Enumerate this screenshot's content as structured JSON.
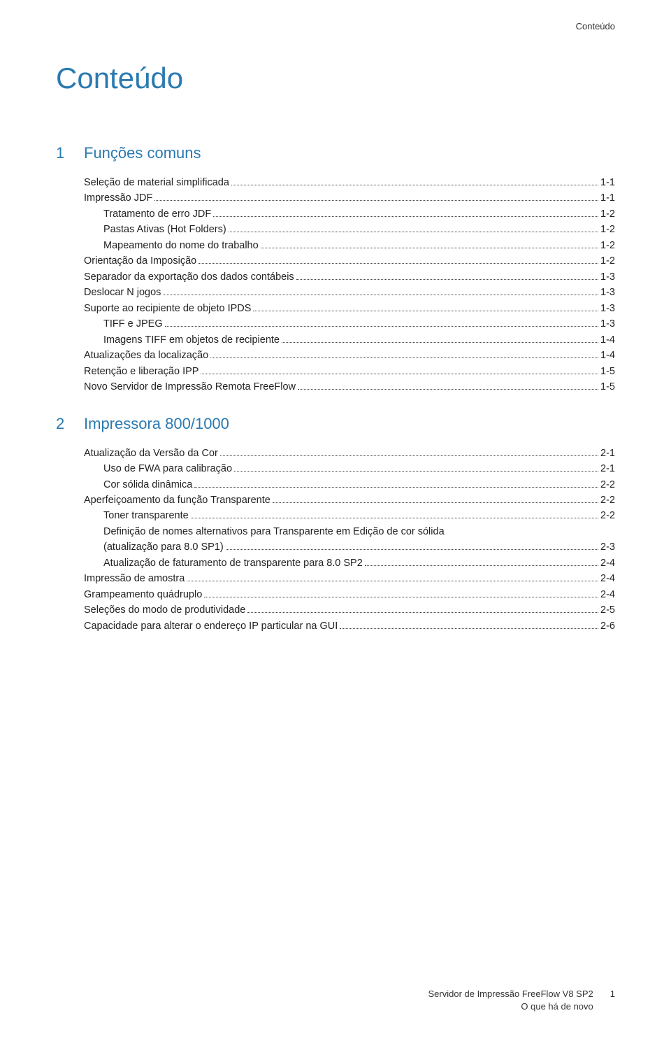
{
  "header_label": "Conteúdo",
  "main_title": "Conteúdo",
  "chapters": [
    {
      "num": "1",
      "title": "Funções comuns",
      "entries": [
        {
          "label": "Seleção de material simplificada",
          "page": "1-1",
          "indent": 0
        },
        {
          "label": "Impressão JDF",
          "page": "1-1",
          "indent": 0
        },
        {
          "label": "Tratamento de erro JDF",
          "page": "1-2",
          "indent": 1
        },
        {
          "label": "Pastas Ativas (Hot Folders)",
          "page": "1-2",
          "indent": 1
        },
        {
          "label": "Mapeamento do nome do trabalho",
          "page": "1-2",
          "indent": 1
        },
        {
          "label": "Orientação da Imposição",
          "page": "1-2",
          "indent": 0
        },
        {
          "label": "Separador da exportação dos dados contábeis",
          "page": "1-3",
          "indent": 0
        },
        {
          "label": "Deslocar N jogos",
          "page": "1-3",
          "indent": 0
        },
        {
          "label": "Suporte ao recipiente de objeto IPDS",
          "page": "1-3",
          "indent": 0
        },
        {
          "label": "TIFF e JPEG",
          "page": "1-3",
          "indent": 1
        },
        {
          "label": "Imagens TIFF em objetos de recipiente",
          "page": "1-4",
          "indent": 1
        },
        {
          "label": "Atualizações da localização",
          "page": "1-4",
          "indent": 0
        },
        {
          "label": "Retenção e liberação IPP",
          "page": "1-5",
          "indent": 0
        },
        {
          "label": "Novo Servidor de Impressão Remota FreeFlow",
          "page": "1-5",
          "indent": 0
        }
      ]
    },
    {
      "num": "2",
      "title": "Impressora 800/1000",
      "entries": [
        {
          "label": "Atualização da Versão da Cor",
          "page": "2-1",
          "indent": 0
        },
        {
          "label": "Uso de FWA para calibração",
          "page": "2-1",
          "indent": 1
        },
        {
          "label": "Cor sólida dinâmica",
          "page": "2-2",
          "indent": 1
        },
        {
          "label": "Aperfeiçoamento da função Transparente",
          "page": "2-2",
          "indent": 0
        },
        {
          "label": "Toner transparente",
          "page": "2-2",
          "indent": 1
        },
        {
          "multiline": true,
          "indent": 1,
          "line1": "Definição de nomes alternativos para Transparente em Edição de cor sólida",
          "line2": "(atualização para 8.0 SP1)",
          "page": "2-3"
        },
        {
          "label": "Atualização de faturamento de transparente para 8.0 SP2",
          "page": "2-4",
          "indent": 1
        },
        {
          "label": "Impressão de amostra",
          "page": "2-4",
          "indent": 0
        },
        {
          "label": "Grampeamento quádruplo",
          "page": "2-4",
          "indent": 0
        },
        {
          "label": "Seleções do modo de produtividade",
          "page": "2-5",
          "indent": 0
        },
        {
          "label": "Capacidade para alterar o endereço IP particular na GUI",
          "page": "2-6",
          "indent": 0
        }
      ]
    }
  ],
  "footer": {
    "line1": "Servidor de Impressão FreeFlow V8 SP2",
    "line2": "O que há de novo",
    "page_num": "1"
  },
  "colors": {
    "accent": "#2a7ab0",
    "text": "#222222",
    "background": "#ffffff"
  }
}
